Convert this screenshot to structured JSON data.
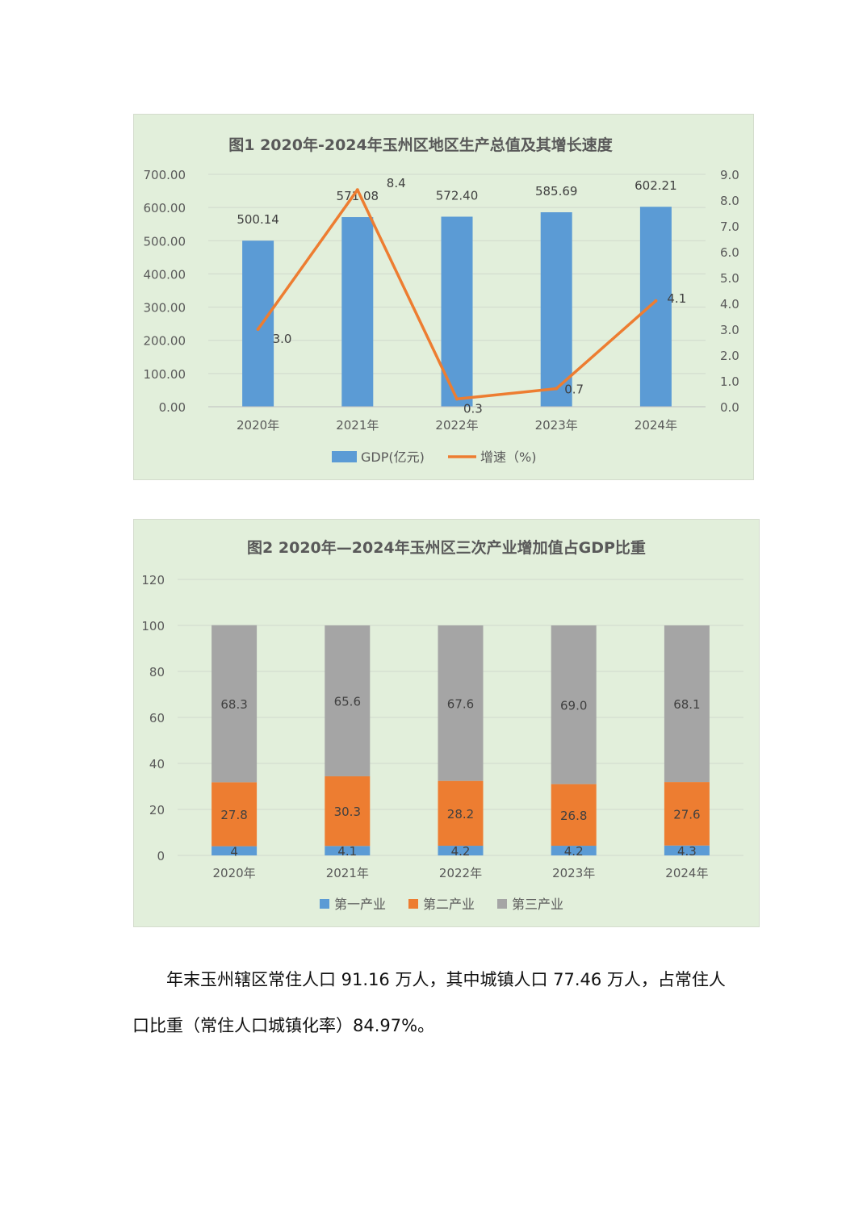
{
  "chart_data": [
    {
      "type": "bar+line",
      "title": "图1  2020年-2024年玉州区地区生产总值及其增长速度",
      "categories": [
        "2020年",
        "2021年",
        "2022年",
        "2023年",
        "2024年"
      ],
      "series": [
        {
          "name": "GDP(亿元)",
          "type": "bar",
          "axis": "left",
          "values": [
            500.14,
            571.08,
            572.4,
            585.69,
            602.21
          ]
        },
        {
          "name": "增速（%)",
          "type": "line",
          "axis": "right",
          "values": [
            3.0,
            8.4,
            0.3,
            0.7,
            4.1
          ]
        }
      ],
      "left_axis": {
        "ticks": [
          "0.00",
          "100.00",
          "200.00",
          "300.00",
          "400.00",
          "500.00",
          "600.00",
          "700.00"
        ],
        "range": [
          0,
          700
        ]
      },
      "right_axis": {
        "ticks": [
          "0.0",
          "1.0",
          "2.0",
          "3.0",
          "4.0",
          "5.0",
          "6.0",
          "7.0",
          "8.0",
          "9.0"
        ],
        "range": [
          0,
          9
        ]
      },
      "bar_labels": [
        "500.14",
        "571.08",
        "572.40",
        "585.69",
        "602.21"
      ],
      "line_labels": [
        "3.0",
        "8.4",
        "0.3",
        "0.7",
        "4.1"
      ],
      "legend_position": "bottom",
      "grid": true,
      "colors": {
        "bar": "#5b9bd5",
        "line": "#ed7d31",
        "background": "#e2efdb"
      }
    },
    {
      "type": "stacked-bar",
      "title": "图2  2020年—2024年玉州区三次产业增加值占GDP比重",
      "categories": [
        "2020年",
        "2021年",
        "2022年",
        "2023年",
        "2024年"
      ],
      "series": [
        {
          "name": "第一产业",
          "values": [
            4,
            4.1,
            4.2,
            4.2,
            4.3
          ],
          "labels": [
            "4",
            "4.1",
            "4.2",
            "4.2",
            "4.3"
          ]
        },
        {
          "name": "第二产业",
          "values": [
            27.8,
            30.3,
            28.2,
            26.8,
            27.6
          ],
          "labels": [
            "27.8",
            "30.3",
            "28.2",
            "26.8",
            "27.6"
          ]
        },
        {
          "name": "第三产业",
          "values": [
            68.3,
            65.6,
            67.6,
            69.0,
            68.1
          ],
          "labels": [
            "68.3",
            "65.6",
            "67.6",
            "69.0",
            "68.1"
          ]
        }
      ],
      "y_axis": {
        "ticks": [
          "0",
          "20",
          "40",
          "60",
          "80",
          "100",
          "120"
        ],
        "range": [
          0,
          120
        ]
      },
      "legend_position": "bottom",
      "grid": true,
      "colors": {
        "第一产业": "#5b9bd5",
        "第二产业": "#ed7d31",
        "第三产业": "#a5a5a5",
        "background": "#e2efdb"
      }
    }
  ],
  "text": {
    "paragraph": "年末玉州辖区常住人口 91.16 万人，其中城镇人口 77.46 万人，占常住人口比重（常住人口城镇化率）84.97%。"
  }
}
